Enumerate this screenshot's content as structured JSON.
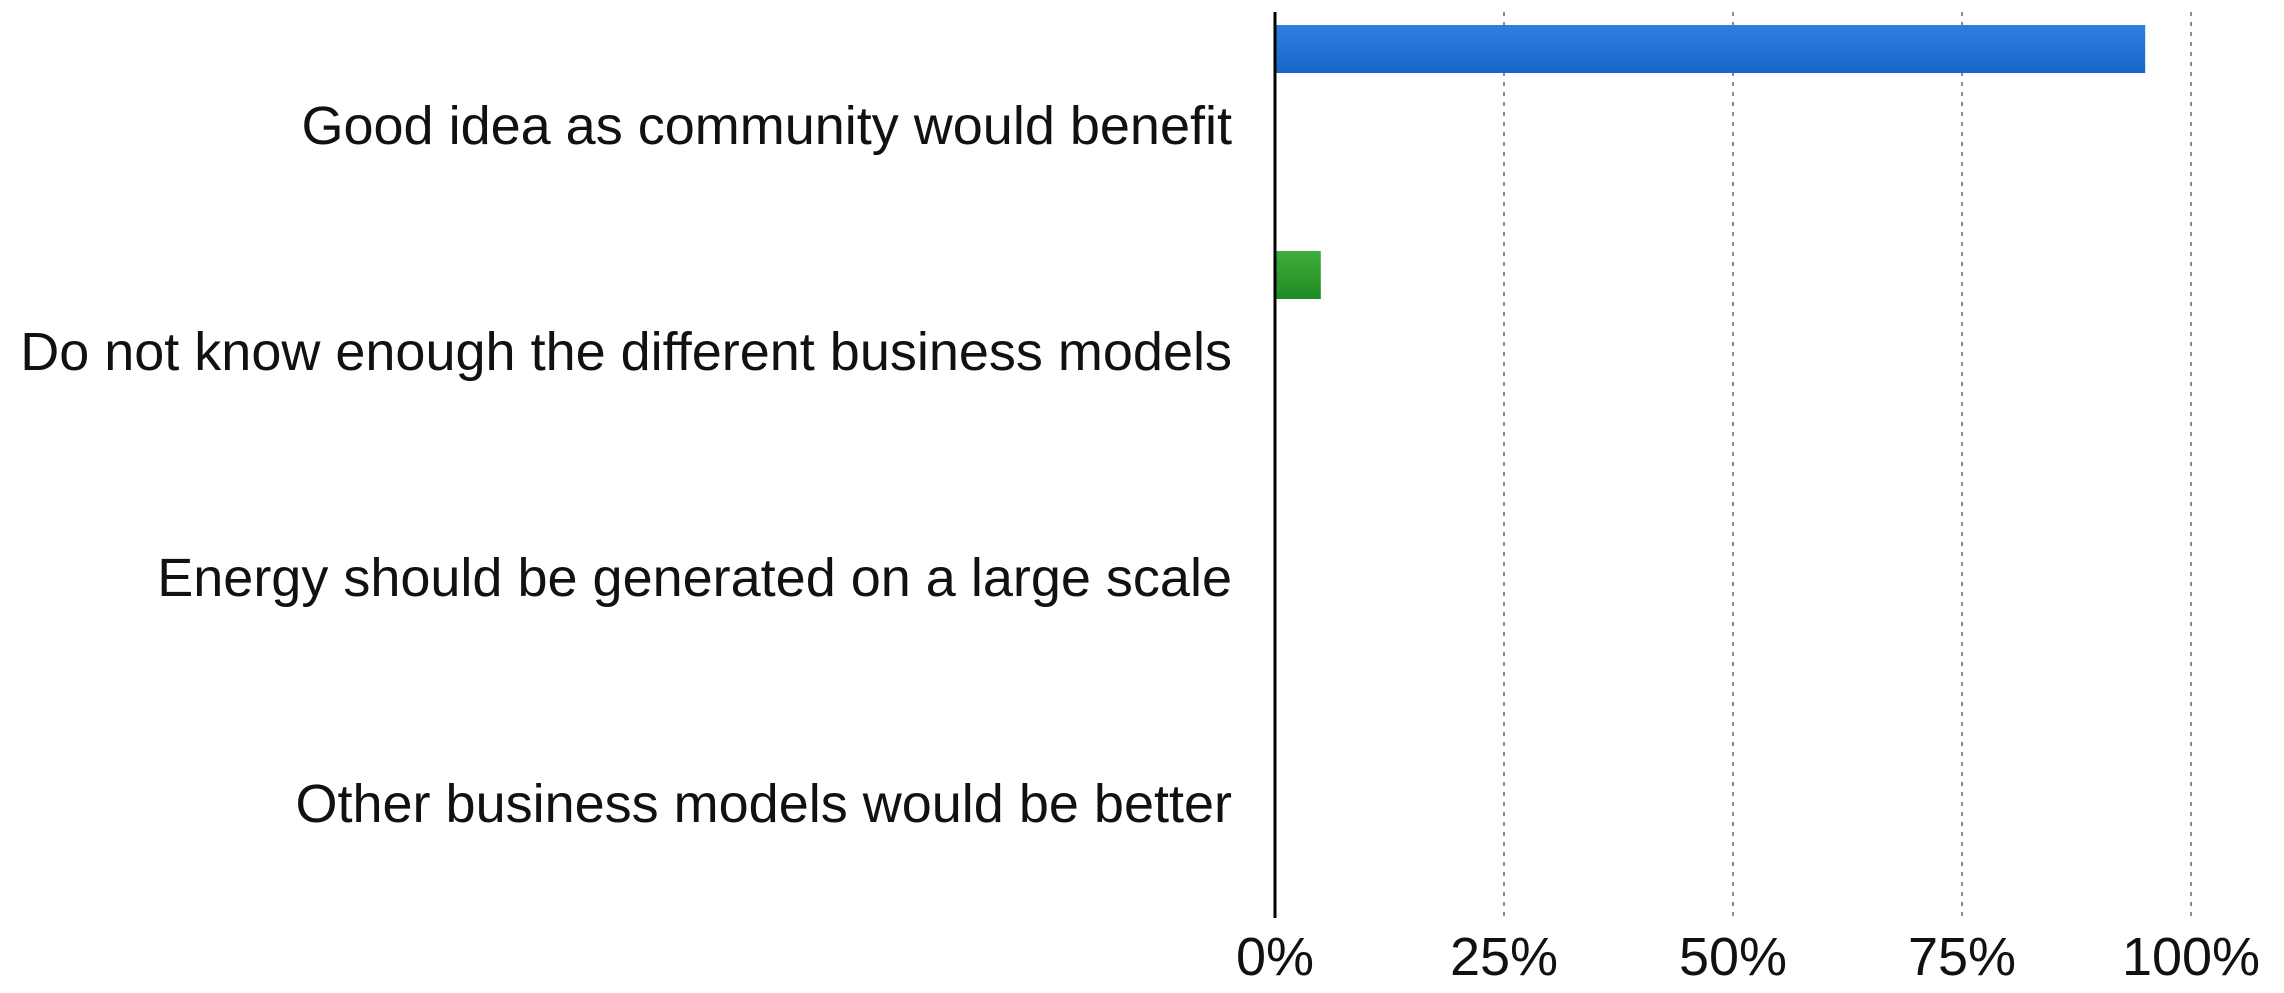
{
  "chart_data": {
    "type": "bar",
    "orientation": "horizontal",
    "categories": [
      "Good idea as community would benefit",
      "Do not know enough the different business models",
      "Energy should be generated on a large scale",
      "Other business models would be better"
    ],
    "values": [
      95,
      5,
      0,
      0
    ],
    "unit": "%",
    "xlim": [
      0,
      100
    ],
    "xticks": [
      0,
      25,
      50,
      75,
      100
    ],
    "tick_labels": [
      "0%",
      "25%",
      "50%",
      "75%",
      "100%"
    ],
    "grid": true,
    "legend": false,
    "title": "",
    "xlabel": "",
    "ylabel": "",
    "colors": {
      "bar_1": "#2f7fe0",
      "bar_1_dark": "#1766c8",
      "bar_2": "#3fae3a",
      "bar_2_dark": "#1f8a24",
      "axis": "#000000",
      "grid": "#8c8c8c"
    }
  }
}
